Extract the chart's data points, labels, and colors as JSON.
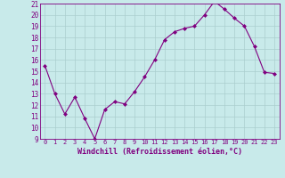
{
  "x": [
    0,
    1,
    2,
    3,
    4,
    5,
    6,
    7,
    8,
    9,
    10,
    11,
    12,
    13,
    14,
    15,
    16,
    17,
    18,
    19,
    20,
    21,
    22,
    23
  ],
  "y": [
    15.5,
    13.0,
    11.2,
    12.7,
    10.8,
    9.0,
    11.6,
    12.3,
    12.1,
    13.2,
    14.5,
    16.0,
    17.8,
    18.5,
    18.8,
    19.0,
    20.0,
    21.2,
    20.5,
    19.7,
    19.0,
    17.2,
    14.9,
    14.8
  ],
  "xlabel": "Windchill (Refroidissement éolien,°C)",
  "ylim": [
    9,
    21
  ],
  "xlim": [
    -0.5,
    23.5
  ],
  "yticks": [
    9,
    10,
    11,
    12,
    13,
    14,
    15,
    16,
    17,
    18,
    19,
    20,
    21
  ],
  "xticks": [
    0,
    1,
    2,
    3,
    4,
    5,
    6,
    7,
    8,
    9,
    10,
    11,
    12,
    13,
    14,
    15,
    16,
    17,
    18,
    19,
    20,
    21,
    22,
    23
  ],
  "line_color": "#800080",
  "marker_color": "#800080",
  "bg_color": "#c8eaea",
  "grid_color": "#aacece",
  "xlabel_fontsize": 6.0,
  "ytick_fontsize": 5.5,
  "xtick_fontsize": 5.0
}
